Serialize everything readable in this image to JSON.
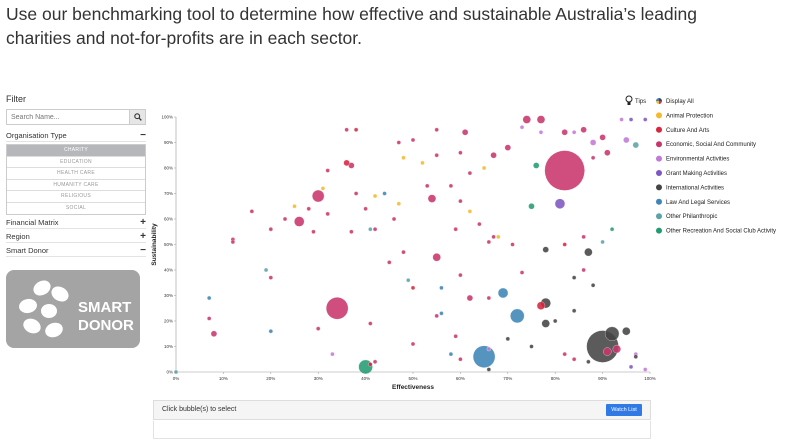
{
  "intro_text": "Use our benchmarking tool to determine how effective and sustainable Australia’s leading charities and not-for-profits are in each sector.",
  "filter": {
    "title": "Filter",
    "search_placeholder": "Search Name...",
    "org_type_label": "Organisation Type",
    "org_type_sign": "−",
    "org_types": [
      "CHARITY",
      "EDUCATION",
      "HEALTH CARE",
      "HUMANITY CARE",
      "RELIGIOUS",
      "SOCIAL"
    ],
    "financial_label": "Financial Matrix",
    "financial_sign": "+",
    "region_label": "Region",
    "region_sign": "+",
    "smart_label": "Smart Donor",
    "smart_sign": "−"
  },
  "logo": {
    "line1": "SMART",
    "line2": "DONOR"
  },
  "tips_label": "Tips",
  "select_text": "Click bubble(s) to select",
  "watch_label": "Watch List",
  "chart_data": {
    "type": "scatter",
    "xlabel": "Effectiveness",
    "ylabel": "Sustainability",
    "xlim": [
      0,
      100
    ],
    "ylim": [
      0,
      100
    ],
    "x_ticks": [
      "0%",
      "10%",
      "20%",
      "30%",
      "40%",
      "50%",
      "60%",
      "70%",
      "80%",
      "90%",
      "100%"
    ],
    "y_ticks": [
      "0%",
      "10%",
      "20%",
      "30%",
      "40%",
      "50%",
      "60%",
      "70%",
      "80%",
      "90%",
      "100%"
    ],
    "legend": [
      {
        "label": "Display All",
        "color": "multi"
      },
      {
        "label": "Animal Protection",
        "color": "#f5b82e"
      },
      {
        "label": "Culture And Arts",
        "color": "#d7263d"
      },
      {
        "label": "Economic, Social And Community",
        "color": "#c9356b"
      },
      {
        "label": "Environmental Activities",
        "color": "#c27ad8"
      },
      {
        "label": "Grant Making Activities",
        "color": "#7e57c2"
      },
      {
        "label": "International Activities",
        "color": "#444444"
      },
      {
        "label": "Law And Legal Services",
        "color": "#3d85b5"
      },
      {
        "label": "Other Philanthropic",
        "color": "#5ba3a8"
      },
      {
        "label": "Other Recreation And Social Club Activity",
        "color": "#239b72"
      }
    ],
    "points": [
      {
        "x": 82,
        "y": 79,
        "r": 20,
        "c": "#c9356b"
      },
      {
        "x": 34,
        "y": 25,
        "r": 11,
        "c": "#c9356b"
      },
      {
        "x": 90,
        "y": 10,
        "r": 16,
        "c": "#444444"
      },
      {
        "x": 65,
        "y": 6,
        "r": 11,
        "c": "#3d85b5"
      },
      {
        "x": 72,
        "y": 22,
        "r": 7,
        "c": "#3d85b5"
      },
      {
        "x": 40,
        "y": 2,
        "r": 7,
        "c": "#239b72"
      },
      {
        "x": 30,
        "y": 69,
        "r": 6,
        "c": "#c9356b"
      },
      {
        "x": 26,
        "y": 59,
        "r": 5,
        "c": "#c9356b"
      },
      {
        "x": 55,
        "y": 45,
        "r": 4,
        "c": "#c9356b"
      },
      {
        "x": 54,
        "y": 68,
        "r": 4,
        "c": "#c9356b"
      },
      {
        "x": 87,
        "y": 47,
        "r": 4,
        "c": "#444444"
      },
      {
        "x": 81,
        "y": 66,
        "r": 5,
        "c": "#7e57c2"
      },
      {
        "x": 78,
        "y": 27,
        "r": 5,
        "c": "#444444"
      },
      {
        "x": 69,
        "y": 31,
        "r": 5,
        "c": "#3d85b5"
      },
      {
        "x": 78,
        "y": 19,
        "r": 4,
        "c": "#444444"
      },
      {
        "x": 92,
        "y": 15,
        "r": 7,
        "c": "#444444"
      },
      {
        "x": 95,
        "y": 16,
        "r": 4,
        "c": "#444444"
      },
      {
        "x": 93,
        "y": 9,
        "r": 4,
        "c": "#c9356b"
      },
      {
        "x": 91,
        "y": 8,
        "r": 4,
        "c": "#c9356b"
      },
      {
        "x": 77,
        "y": 26,
        "r": 4,
        "c": "#d7263d"
      },
      {
        "x": 74,
        "y": 99,
        "r": 4,
        "c": "#c9356b"
      },
      {
        "x": 77,
        "y": 99,
        "r": 4,
        "c": "#c9356b"
      },
      {
        "x": 82,
        "y": 94,
        "r": 3,
        "c": "#c9356b"
      },
      {
        "x": 86,
        "y": 95,
        "r": 3,
        "c": "#c9356b"
      },
      {
        "x": 90,
        "y": 92,
        "r": 3,
        "c": "#c9356b"
      },
      {
        "x": 88,
        "y": 90,
        "r": 3,
        "c": "#c27ad8"
      },
      {
        "x": 95,
        "y": 91,
        "r": 3,
        "c": "#c27ad8"
      },
      {
        "x": 97,
        "y": 89,
        "r": 3,
        "c": "#5ba3a8"
      },
      {
        "x": 99,
        "y": 99,
        "r": 2,
        "c": "#7e57c2"
      },
      {
        "x": 94,
        "y": 99,
        "r": 2,
        "c": "#c27ad8"
      },
      {
        "x": 96,
        "y": 99,
        "r": 2,
        "c": "#7e57c2"
      },
      {
        "x": 91,
        "y": 86,
        "r": 3,
        "c": "#c9356b"
      },
      {
        "x": 88,
        "y": 84,
        "r": 2,
        "c": "#c9356b"
      },
      {
        "x": 75,
        "y": 65,
        "r": 3,
        "c": "#239b72"
      },
      {
        "x": 76,
        "y": 81,
        "r": 3,
        "c": "#239b72"
      },
      {
        "x": 70,
        "y": 88,
        "r": 3,
        "c": "#c9356b"
      },
      {
        "x": 61,
        "y": 94,
        "r": 3,
        "c": "#c9356b"
      },
      {
        "x": 55,
        "y": 95,
        "r": 2,
        "c": "#c9356b"
      },
      {
        "x": 50,
        "y": 91,
        "r": 2,
        "c": "#c9356b"
      },
      {
        "x": 47,
        "y": 90,
        "r": 2,
        "c": "#c9356b"
      },
      {
        "x": 38,
        "y": 95,
        "r": 2,
        "c": "#d7263d"
      },
      {
        "x": 37,
        "y": 81,
        "r": 3,
        "c": "#c9356b"
      },
      {
        "x": 36,
        "y": 82,
        "r": 3,
        "c": "#d7263d"
      },
      {
        "x": 32,
        "y": 79,
        "r": 2,
        "c": "#c9356b"
      },
      {
        "x": 48,
        "y": 84,
        "r": 2,
        "c": "#f5b82e"
      },
      {
        "x": 52,
        "y": 82,
        "r": 2,
        "c": "#f5b82e"
      },
      {
        "x": 55,
        "y": 85,
        "r": 2,
        "c": "#c9356b"
      },
      {
        "x": 60,
        "y": 86,
        "r": 2,
        "c": "#c9356b"
      },
      {
        "x": 62,
        "y": 78,
        "r": 2,
        "c": "#c9356b"
      },
      {
        "x": 67,
        "y": 85,
        "r": 3,
        "c": "#c9356b"
      },
      {
        "x": 65,
        "y": 80,
        "r": 2,
        "c": "#f5b82e"
      },
      {
        "x": 58,
        "y": 73,
        "r": 2,
        "c": "#c9356b"
      },
      {
        "x": 53,
        "y": 73,
        "r": 2,
        "c": "#c9356b"
      },
      {
        "x": 42,
        "y": 69,
        "r": 2,
        "c": "#f5b82e"
      },
      {
        "x": 38,
        "y": 70,
        "r": 2,
        "c": "#c9356b"
      },
      {
        "x": 31,
        "y": 72,
        "r": 2,
        "c": "#f5b82e"
      },
      {
        "x": 25,
        "y": 65,
        "r": 2,
        "c": "#f5b82e"
      },
      {
        "x": 28,
        "y": 64,
        "r": 2,
        "c": "#c9356b"
      },
      {
        "x": 32,
        "y": 62,
        "r": 2,
        "c": "#c9356b"
      },
      {
        "x": 40,
        "y": 64,
        "r": 2,
        "c": "#c9356b"
      },
      {
        "x": 44,
        "y": 70,
        "r": 2,
        "c": "#3d85b5"
      },
      {
        "x": 47,
        "y": 66,
        "r": 2,
        "c": "#f5b82e"
      },
      {
        "x": 46,
        "y": 60,
        "r": 2,
        "c": "#c9356b"
      },
      {
        "x": 60,
        "y": 67,
        "r": 2,
        "c": "#c9356b"
      },
      {
        "x": 62,
        "y": 63,
        "r": 2,
        "c": "#f5b82e"
      },
      {
        "x": 64,
        "y": 58,
        "r": 2,
        "c": "#c9356b"
      },
      {
        "x": 68,
        "y": 53,
        "r": 2,
        "c": "#f5b82e"
      },
      {
        "x": 67,
        "y": 53,
        "r": 2,
        "c": "#c9356b"
      },
      {
        "x": 66,
        "y": 51,
        "r": 2,
        "c": "#c9356b"
      },
      {
        "x": 59,
        "y": 56,
        "r": 2,
        "c": "#c9356b"
      },
      {
        "x": 48,
        "y": 47,
        "r": 2,
        "c": "#c9356b"
      },
      {
        "x": 45,
        "y": 43,
        "r": 2,
        "c": "#c9356b"
      },
      {
        "x": 37,
        "y": 55,
        "r": 2,
        "c": "#c9356b"
      },
      {
        "x": 42,
        "y": 56,
        "r": 2,
        "c": "#c9356b"
      },
      {
        "x": 41,
        "y": 56,
        "r": 2,
        "c": "#5ba3a8"
      },
      {
        "x": 29,
        "y": 55,
        "r": 2,
        "c": "#c9356b"
      },
      {
        "x": 20,
        "y": 56,
        "r": 2,
        "c": "#c9356b"
      },
      {
        "x": 16,
        "y": 63,
        "r": 2,
        "c": "#c9356b"
      },
      {
        "x": 12,
        "y": 52,
        "r": 2,
        "c": "#c9356b"
      },
      {
        "x": 12,
        "y": 51,
        "r": 2,
        "c": "#c9356b"
      },
      {
        "x": 19,
        "y": 40,
        "r": 2,
        "c": "#5ba3a8"
      },
      {
        "x": 20,
        "y": 37,
        "r": 2,
        "c": "#c9356b"
      },
      {
        "x": 49,
        "y": 36,
        "r": 2,
        "c": "#5ba3a8"
      },
      {
        "x": 50,
        "y": 33,
        "r": 2,
        "c": "#d7263d"
      },
      {
        "x": 56,
        "y": 33,
        "r": 2,
        "c": "#3d85b5"
      },
      {
        "x": 60,
        "y": 38,
        "r": 2,
        "c": "#c9356b"
      },
      {
        "x": 62,
        "y": 29,
        "r": 3,
        "c": "#c9356b"
      },
      {
        "x": 66,
        "y": 29,
        "r": 2,
        "c": "#c9356b"
      },
      {
        "x": 73,
        "y": 39,
        "r": 2,
        "c": "#c9356b"
      },
      {
        "x": 71,
        "y": 50,
        "r": 2,
        "c": "#c9356b"
      },
      {
        "x": 78,
        "y": 48,
        "r": 3,
        "c": "#444444"
      },
      {
        "x": 82,
        "y": 50,
        "r": 2,
        "c": "#d7263d"
      },
      {
        "x": 86,
        "y": 53,
        "r": 2,
        "c": "#c9356b"
      },
      {
        "x": 90,
        "y": 51,
        "r": 2,
        "c": "#5ba3a8"
      },
      {
        "x": 92,
        "y": 56,
        "r": 2,
        "c": "#239b72"
      },
      {
        "x": 86,
        "y": 40,
        "r": 2,
        "c": "#c9356b"
      },
      {
        "x": 84,
        "y": 37,
        "r": 2,
        "c": "#444444"
      },
      {
        "x": 88,
        "y": 34,
        "r": 2,
        "c": "#444444"
      },
      {
        "x": 84,
        "y": 24,
        "r": 2,
        "c": "#444444"
      },
      {
        "x": 80,
        "y": 20,
        "r": 2,
        "c": "#444444"
      },
      {
        "x": 75,
        "y": 10,
        "r": 2,
        "c": "#444444"
      },
      {
        "x": 82,
        "y": 7,
        "r": 2,
        "c": "#c9356b"
      },
      {
        "x": 84,
        "y": 5,
        "r": 2,
        "c": "#c9356b"
      },
      {
        "x": 87,
        "y": 4,
        "r": 2,
        "c": "#444444"
      },
      {
        "x": 66,
        "y": 9,
        "r": 2,
        "c": "#c27ad8"
      },
      {
        "x": 70,
        "y": 13,
        "r": 2,
        "c": "#444444"
      },
      {
        "x": 66,
        "y": 1,
        "r": 2,
        "c": "#444444"
      },
      {
        "x": 60,
        "y": 5,
        "r": 2,
        "c": "#c9356b"
      },
      {
        "x": 58,
        "y": 7,
        "r": 2,
        "c": "#3d85b5"
      },
      {
        "x": 50,
        "y": 11,
        "r": 2,
        "c": "#c9356b"
      },
      {
        "x": 55,
        "y": 22,
        "r": 2,
        "c": "#c9356b"
      },
      {
        "x": 56,
        "y": 23,
        "r": 2,
        "c": "#3d85b5"
      },
      {
        "x": 59,
        "y": 14,
        "r": 2,
        "c": "#c9356b"
      },
      {
        "x": 41,
        "y": 3,
        "r": 2,
        "c": "#d7263d"
      },
      {
        "x": 42,
        "y": 4,
        "r": 2,
        "c": "#c9356b"
      },
      {
        "x": 41,
        "y": 19,
        "r": 2,
        "c": "#c9356b"
      },
      {
        "x": 33,
        "y": 7,
        "r": 2,
        "c": "#c27ad8"
      },
      {
        "x": 30,
        "y": 17,
        "r": 2,
        "c": "#c9356b"
      },
      {
        "x": 20,
        "y": 16,
        "r": 2,
        "c": "#3d85b5"
      },
      {
        "x": 8,
        "y": 15,
        "r": 3,
        "c": "#c9356b"
      },
      {
        "x": 7,
        "y": 21,
        "r": 2,
        "c": "#c9356b"
      },
      {
        "x": 7,
        "y": 29,
        "r": 2,
        "c": "#3d85b5"
      },
      {
        "x": 0,
        "y": 0,
        "r": 2,
        "c": "#5ba3a8"
      },
      {
        "x": 99,
        "y": 1,
        "r": 2,
        "c": "#c27ad8"
      },
      {
        "x": 96,
        "y": 2,
        "r": 2,
        "c": "#7e57c2"
      },
      {
        "x": 97,
        "y": 7,
        "r": 2,
        "c": "#c27ad8"
      },
      {
        "x": 97,
        "y": 6,
        "r": 2,
        "c": "#444444"
      },
      {
        "x": 77,
        "y": 94,
        "r": 2,
        "c": "#c27ad8"
      },
      {
        "x": 84,
        "y": 94,
        "r": 2,
        "c": "#c27ad8"
      },
      {
        "x": 73,
        "y": 96,
        "r": 2,
        "c": "#c27ad8"
      },
      {
        "x": 36,
        "y": 95,
        "r": 2,
        "c": "#c9356b"
      },
      {
        "x": 23,
        "y": 60,
        "r": 2,
        "c": "#c9356b"
      }
    ]
  }
}
